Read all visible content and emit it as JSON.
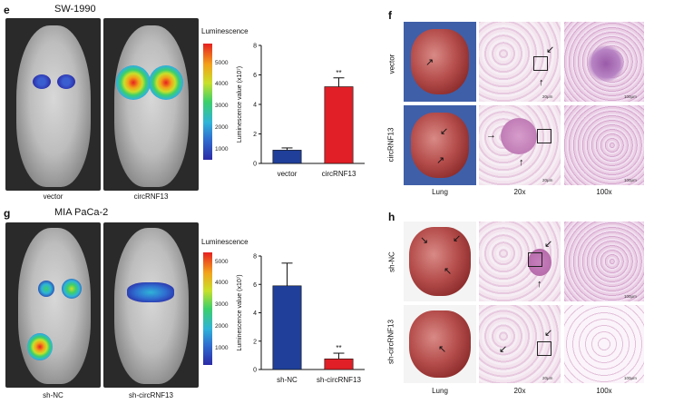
{
  "panels": {
    "e": {
      "letter": "e",
      "title": "SW-1990",
      "captions": [
        "vector",
        "circRNF13"
      ],
      "colorbar_title": "Luminescence",
      "colorbar_ticks": [
        "5000",
        "4000",
        "3000",
        "2000",
        "1000"
      ]
    },
    "f": {
      "letter": "f",
      "row_labels": [
        "vector",
        "circRNF13"
      ],
      "col_labels": [
        "Lung",
        "20x",
        "100x"
      ],
      "scale_labels": [
        "20μm",
        "100μm"
      ]
    },
    "g": {
      "letter": "g",
      "title": "MIA PaCa-2",
      "captions": [
        "sh-NC",
        "sh-circRNF13"
      ],
      "colorbar_title": "Luminescence",
      "colorbar_ticks": [
        "5000",
        "4000",
        "3000",
        "2000",
        "1000"
      ]
    },
    "h": {
      "letter": "h",
      "row_labels": [
        "sh-NC",
        "sh-circRNF13"
      ],
      "col_labels": [
        "Lung",
        "20x",
        "100x"
      ],
      "scale_labels": [
        "20μm",
        "100μm"
      ]
    }
  },
  "chart_data": [
    {
      "type": "bar",
      "categories": [
        "vector",
        "circRNF13"
      ],
      "values": [
        0.9,
        5.2
      ],
      "errors": [
        0.15,
        0.6
      ],
      "colors": [
        "#1f3f9a",
        "#e01f26"
      ],
      "ylabel": "Luminescence value (x10⁷)",
      "ylim": [
        0,
        8
      ],
      "yticks": [
        "0",
        "2",
        "4",
        "6",
        "8"
      ],
      "annotations": [
        {
          "category": "circRNF13",
          "text": "**"
        }
      ]
    },
    {
      "type": "bar",
      "categories": [
        "sh-NC",
        "sh-circRNF13"
      ],
      "values": [
        5.9,
        0.75
      ],
      "errors": [
        1.6,
        0.4
      ],
      "colors": [
        "#1f3f9a",
        "#e01f26"
      ],
      "ylabel": "Luminescence value (x10⁷)",
      "ylim": [
        0,
        8
      ],
      "yticks": [
        "0",
        "2",
        "4",
        "6",
        "8"
      ],
      "annotations": [
        {
          "category": "sh-circRNF13",
          "text": "**"
        }
      ]
    }
  ]
}
